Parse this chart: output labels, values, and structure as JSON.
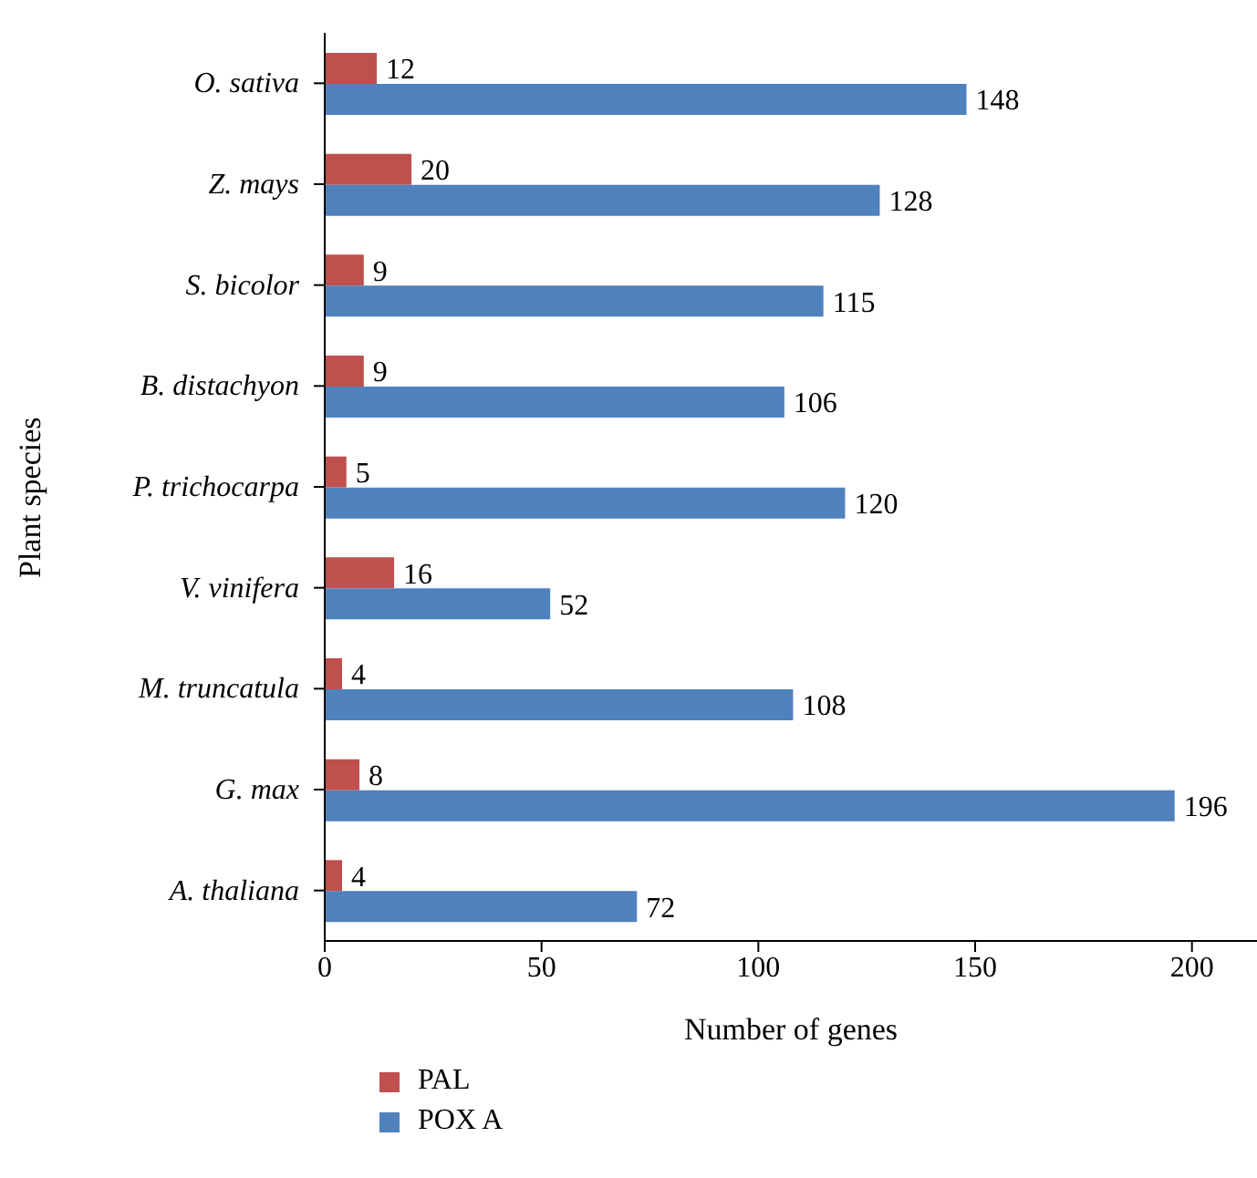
{
  "chart_data": {
    "type": "bar",
    "orientation": "horizontal",
    "xlabel": "Number of genes",
    "ylabel": "Plant species",
    "categories": [
      "O. sativa",
      "Z. mays",
      "S. bicolor",
      "B. distachyon",
      "P. trichocarpa",
      "V. vinifera",
      "M. truncatula",
      "G. max",
      "A. thaliana"
    ],
    "series": [
      {
        "name": "PAL",
        "color": "#c0504d",
        "values": [
          12,
          20,
          9,
          9,
          5,
          16,
          4,
          8,
          4
        ]
      },
      {
        "name": "POX A",
        "color": "#4f81bd",
        "values": [
          148,
          128,
          115,
          106,
          120,
          52,
          108,
          196,
          72
        ]
      }
    ],
    "xlim": [
      0,
      215
    ],
    "xticks": [
      0,
      50,
      100,
      150,
      200
    ],
    "data_labels": true,
    "legend": "bottom left",
    "grid": false
  }
}
